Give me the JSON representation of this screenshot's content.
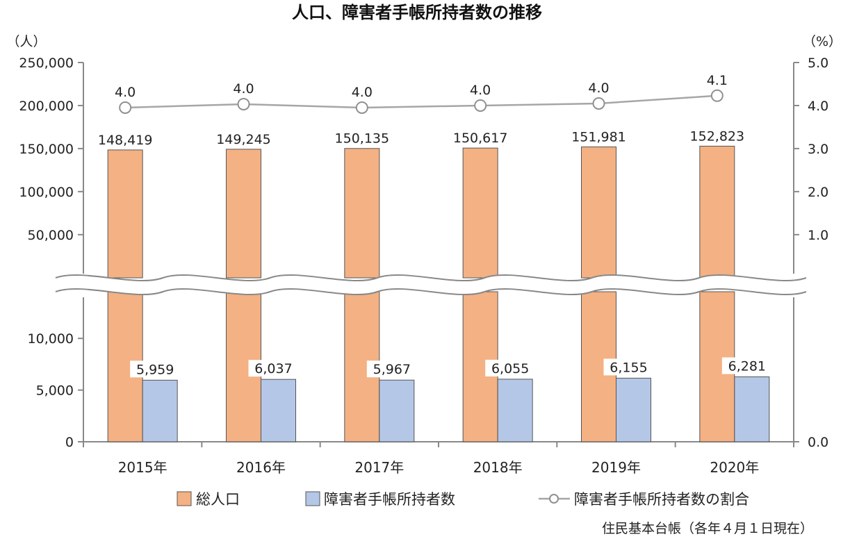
{
  "chart_data": {
    "type": "bar",
    "title": "人口、障害者手帳所持者数の推移",
    "categories": [
      "2015年",
      "2016年",
      "2017年",
      "2018年",
      "2019年",
      "2020年"
    ],
    "series": [
      {
        "name": "総人口",
        "values": [
          148419,
          149245,
          150135,
          150617,
          151981,
          152823
        ],
        "labels": [
          "148,419",
          "149,245",
          "150,135",
          "150,617",
          "151,981",
          "152,823"
        ],
        "color": "#f4b183"
      },
      {
        "name": "障害者手帳所持者数",
        "values": [
          5959,
          6037,
          5967,
          6055,
          6155,
          6281
        ],
        "labels": [
          "5,959",
          "6,037",
          "5,967",
          "6,055",
          "6,155",
          "6,281"
        ],
        "color": "#b4c7e7"
      },
      {
        "name": "障害者手帳所持者数の割合",
        "type": "line",
        "axis": "right",
        "values": [
          4.0,
          4.0,
          4.0,
          4.0,
          4.0,
          4.1
        ],
        "labels": [
          "4.0",
          "4.0",
          "4.0",
          "4.0",
          "4.0",
          "4.1"
        ],
        "color": "#a6a6a6"
      }
    ],
    "y_left": {
      "unit": "（人）",
      "broken": true,
      "upper_range": [
        20000,
        250000
      ],
      "upper_ticks": [
        "250,000",
        "200,000",
        "150,000",
        "100,000",
        "50,000"
      ],
      "lower_range": [
        0,
        12500
      ],
      "lower_ticks": [
        "10,000",
        "5,000",
        "0"
      ]
    },
    "y_right": {
      "unit": "（%）",
      "range": [
        0.0,
        5.0
      ],
      "upper_ticks": [
        "5.0",
        "4.0",
        "3.0",
        "2.0",
        "1.0"
      ],
      "lower_ticks": [
        "0.0"
      ]
    },
    "legend": "bottom",
    "grid": false,
    "source_note": "住民基本台帳（各年４月１日現在）"
  }
}
